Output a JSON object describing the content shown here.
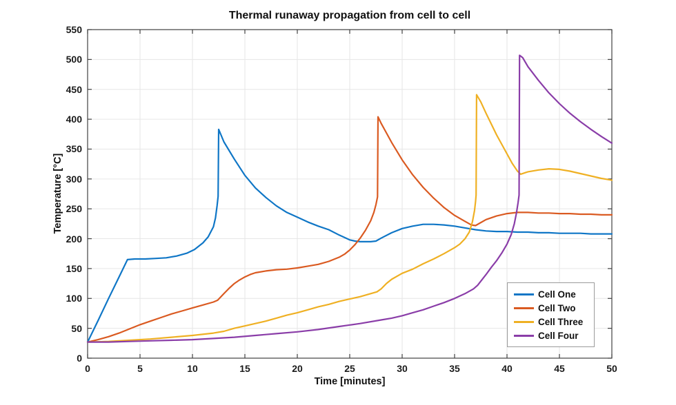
{
  "figure": {
    "background": "#ffffff",
    "axis_color": "#404040",
    "grid_color": "#e6e6e6",
    "text_color": "#111111"
  },
  "chart_data": {
    "type": "line",
    "title": "Thermal runaway propagation from cell to cell",
    "xlabel": "Time [minutes]",
    "ylabel": "Temperature [°C]",
    "xlim": [
      0,
      50
    ],
    "ylim": [
      0,
      550
    ],
    "x_ticks": [
      0,
      5,
      10,
      15,
      20,
      25,
      30,
      35,
      40,
      45,
      50
    ],
    "y_ticks": [
      0,
      50,
      100,
      150,
      200,
      250,
      300,
      350,
      400,
      450,
      500,
      550
    ],
    "grid": true,
    "legend_position": "inside lower right",
    "legend_labels": [
      "Cell One",
      "Cell Two",
      "Cell Three",
      "Cell Four"
    ],
    "series": [
      {
        "name": "Cell One",
        "color": "#0f76c6",
        "runaway_time_min": 12.5,
        "peak_temp_c": 383,
        "points": [
          [
            0,
            27
          ],
          [
            1,
            63
          ],
          [
            2,
            100
          ],
          [
            3,
            136
          ],
          [
            3.8,
            165
          ],
          [
            4.5,
            166
          ],
          [
            5.5,
            166
          ],
          [
            6.5,
            167
          ],
          [
            7.5,
            168
          ],
          [
            8.5,
            171
          ],
          [
            9.5,
            176
          ],
          [
            10.2,
            182
          ],
          [
            11,
            193
          ],
          [
            11.5,
            203
          ],
          [
            12,
            220
          ],
          [
            12.2,
            235
          ],
          [
            12.35,
            255
          ],
          [
            12.45,
            271
          ],
          [
            12.5,
            383
          ],
          [
            13,
            362
          ],
          [
            14,
            333
          ],
          [
            15,
            306
          ],
          [
            16,
            285
          ],
          [
            17,
            269
          ],
          [
            18,
            255
          ],
          [
            19,
            244
          ],
          [
            20,
            236
          ],
          [
            21,
            228
          ],
          [
            22,
            221
          ],
          [
            23,
            215
          ],
          [
            24,
            206
          ],
          [
            25,
            198
          ],
          [
            25.5,
            196
          ],
          [
            26,
            195
          ],
          [
            27,
            195
          ],
          [
            27.5,
            196
          ],
          [
            28,
            201
          ],
          [
            29,
            210
          ],
          [
            30,
            217
          ],
          [
            31,
            221
          ],
          [
            32,
            224
          ],
          [
            33,
            224
          ],
          [
            34,
            223
          ],
          [
            35,
            221
          ],
          [
            36,
            218
          ],
          [
            37,
            215
          ],
          [
            38,
            213
          ],
          [
            39,
            212
          ],
          [
            40,
            212
          ],
          [
            41,
            211
          ],
          [
            42,
            211
          ],
          [
            43,
            210
          ],
          [
            44,
            210
          ],
          [
            45,
            209
          ],
          [
            46,
            209
          ],
          [
            47,
            209
          ],
          [
            48,
            208
          ],
          [
            49,
            208
          ],
          [
            50,
            208
          ]
        ]
      },
      {
        "name": "Cell Two",
        "color": "#da5a21",
        "runaway_time_min": 27.7,
        "peak_temp_c": 404,
        "points": [
          [
            0,
            27
          ],
          [
            1,
            31
          ],
          [
            2,
            36
          ],
          [
            3,
            42
          ],
          [
            4,
            49
          ],
          [
            5,
            56
          ],
          [
            6,
            62
          ],
          [
            7,
            68
          ],
          [
            8,
            74
          ],
          [
            9,
            79
          ],
          [
            10,
            84
          ],
          [
            11,
            89
          ],
          [
            12,
            94
          ],
          [
            12.4,
            97
          ],
          [
            13,
            108
          ],
          [
            13.5,
            117
          ],
          [
            14,
            125
          ],
          [
            14.5,
            131
          ],
          [
            15,
            136
          ],
          [
            15.5,
            140
          ],
          [
            16,
            143
          ],
          [
            17,
            146
          ],
          [
            18,
            148
          ],
          [
            19,
            149
          ],
          [
            20,
            151
          ],
          [
            21,
            154
          ],
          [
            22,
            157
          ],
          [
            23,
            162
          ],
          [
            24,
            169
          ],
          [
            24.5,
            174
          ],
          [
            25,
            181
          ],
          [
            25.5,
            190
          ],
          [
            26,
            201
          ],
          [
            26.5,
            214
          ],
          [
            27,
            230
          ],
          [
            27.3,
            244
          ],
          [
            27.5,
            257
          ],
          [
            27.65,
            270
          ],
          [
            27.7,
            404
          ],
          [
            28,
            393
          ],
          [
            28.5,
            377
          ],
          [
            29,
            361
          ],
          [
            30,
            332
          ],
          [
            31,
            307
          ],
          [
            32,
            286
          ],
          [
            33,
            268
          ],
          [
            34,
            252
          ],
          [
            35,
            239
          ],
          [
            36,
            229
          ],
          [
            36.6,
            223
          ],
          [
            37,
            222
          ],
          [
            37.4,
            226
          ],
          [
            38,
            232
          ],
          [
            39,
            238
          ],
          [
            40,
            242
          ],
          [
            41,
            244
          ],
          [
            42,
            244
          ],
          [
            43,
            243
          ],
          [
            44,
            243
          ],
          [
            45,
            242
          ],
          [
            46,
            242
          ],
          [
            47,
            241
          ],
          [
            48,
            241
          ],
          [
            49,
            240
          ],
          [
            50,
            240
          ]
        ]
      },
      {
        "name": "Cell Three",
        "color": "#efb023",
        "runaway_time_min": 37.1,
        "peak_temp_c": 441,
        "points": [
          [
            0,
            27
          ],
          [
            2,
            28
          ],
          [
            4,
            30
          ],
          [
            6,
            32
          ],
          [
            8,
            35
          ],
          [
            10,
            38
          ],
          [
            12,
            42
          ],
          [
            13,
            45
          ],
          [
            14,
            50
          ],
          [
            15,
            54
          ],
          [
            16,
            58
          ],
          [
            17,
            62
          ],
          [
            18,
            67
          ],
          [
            19,
            72
          ],
          [
            20,
            76
          ],
          [
            21,
            81
          ],
          [
            22,
            86
          ],
          [
            23,
            90
          ],
          [
            24,
            95
          ],
          [
            25,
            99
          ],
          [
            26,
            103
          ],
          [
            27,
            108
          ],
          [
            27.6,
            111
          ],
          [
            28,
            116
          ],
          [
            28.5,
            125
          ],
          [
            29,
            132
          ],
          [
            30,
            142
          ],
          [
            31,
            149
          ],
          [
            32,
            158
          ],
          [
            33,
            166
          ],
          [
            34,
            175
          ],
          [
            35,
            185
          ],
          [
            35.5,
            191
          ],
          [
            36,
            200
          ],
          [
            36.4,
            211
          ],
          [
            36.7,
            228
          ],
          [
            36.9,
            247
          ],
          [
            37,
            262
          ],
          [
            37.05,
            273
          ],
          [
            37.1,
            441
          ],
          [
            37.5,
            429
          ],
          [
            38,
            410
          ],
          [
            38.5,
            392
          ],
          [
            39,
            374
          ],
          [
            39.5,
            358
          ],
          [
            40,
            342
          ],
          [
            40.5,
            326
          ],
          [
            41,
            313
          ],
          [
            41.3,
            308
          ],
          [
            42,
            312
          ],
          [
            43,
            315
          ],
          [
            44,
            317
          ],
          [
            45,
            316
          ],
          [
            46,
            313
          ],
          [
            47,
            309
          ],
          [
            48,
            305
          ],
          [
            49,
            301
          ],
          [
            50,
            298
          ]
        ]
      },
      {
        "name": "Cell Four",
        "color": "#8a3da8",
        "runaway_time_min": 41.2,
        "peak_temp_c": 507,
        "points": [
          [
            0,
            27
          ],
          [
            2,
            27
          ],
          [
            4,
            28
          ],
          [
            6,
            29
          ],
          [
            8,
            30
          ],
          [
            10,
            31
          ],
          [
            12,
            33
          ],
          [
            14,
            35
          ],
          [
            16,
            38
          ],
          [
            18,
            41
          ],
          [
            20,
            44
          ],
          [
            22,
            48
          ],
          [
            24,
            53
          ],
          [
            26,
            58
          ],
          [
            28,
            64
          ],
          [
            29,
            67
          ],
          [
            30,
            71
          ],
          [
            31,
            76
          ],
          [
            32,
            81
          ],
          [
            33,
            87
          ],
          [
            34,
            93
          ],
          [
            35,
            100
          ],
          [
            36,
            108
          ],
          [
            36.8,
            116
          ],
          [
            37.2,
            122
          ],
          [
            38,
            140
          ],
          [
            38.5,
            152
          ],
          [
            39,
            163
          ],
          [
            39.5,
            176
          ],
          [
            40,
            191
          ],
          [
            40.4,
            207
          ],
          [
            40.7,
            225
          ],
          [
            40.9,
            243
          ],
          [
            41.05,
            260
          ],
          [
            41.15,
            273
          ],
          [
            41.2,
            507
          ],
          [
            41.5,
            503
          ],
          [
            42,
            488
          ],
          [
            43,
            465
          ],
          [
            44,
            444
          ],
          [
            45,
            426
          ],
          [
            46,
            410
          ],
          [
            47,
            396
          ],
          [
            48,
            383
          ],
          [
            49,
            371
          ],
          [
            50,
            360
          ]
        ]
      }
    ]
  }
}
